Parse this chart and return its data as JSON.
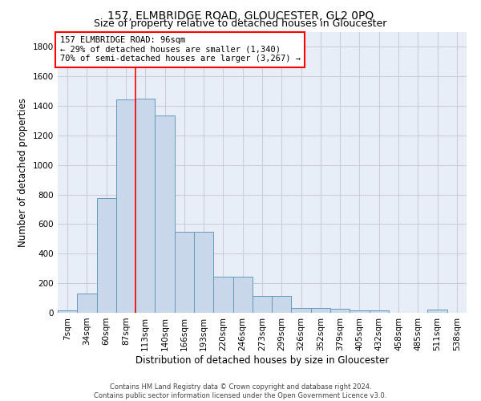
{
  "title": "157, ELMBRIDGE ROAD, GLOUCESTER, GL2 0PQ",
  "subtitle": "Size of property relative to detached houses in Gloucester",
  "xlabel": "Distribution of detached houses by size in Gloucester",
  "ylabel": "Number of detached properties",
  "bar_labels": [
    "7sqm",
    "34sqm",
    "60sqm",
    "87sqm",
    "113sqm",
    "140sqm",
    "166sqm",
    "193sqm",
    "220sqm",
    "246sqm",
    "273sqm",
    "299sqm",
    "326sqm",
    "352sqm",
    "379sqm",
    "405sqm",
    "432sqm",
    "458sqm",
    "485sqm",
    "511sqm",
    "538sqm"
  ],
  "bar_heights": [
    15,
    130,
    775,
    1445,
    1450,
    1335,
    550,
    550,
    245,
    245,
    115,
    115,
    35,
    35,
    25,
    18,
    15,
    0,
    0,
    20,
    0
  ],
  "bar_color": "#c8d8ea",
  "bar_edge_color": "#6699bb",
  "vline_x": 3.5,
  "vline_color": "red",
  "annotation_text": "157 ELMBRIDGE ROAD: 96sqm\n← 29% of detached houses are smaller (1,340)\n70% of semi-detached houses are larger (3,267) →",
  "annotation_box_color": "white",
  "annotation_box_edge": "red",
  "ylim": [
    0,
    1900
  ],
  "yticks": [
    0,
    200,
    400,
    600,
    800,
    1000,
    1200,
    1400,
    1600,
    1800
  ],
  "grid_color": "#ccccdd",
  "bg_color": "#e8eef8",
  "footer": "Contains HM Land Registry data © Crown copyright and database right 2024.\nContains public sector information licensed under the Open Government Licence v3.0.",
  "title_fontsize": 10,
  "subtitle_fontsize": 9,
  "xlabel_fontsize": 8.5,
  "ylabel_fontsize": 8.5,
  "tick_fontsize": 7.5,
  "annotation_fontsize": 7.5,
  "footer_fontsize": 6.0
}
